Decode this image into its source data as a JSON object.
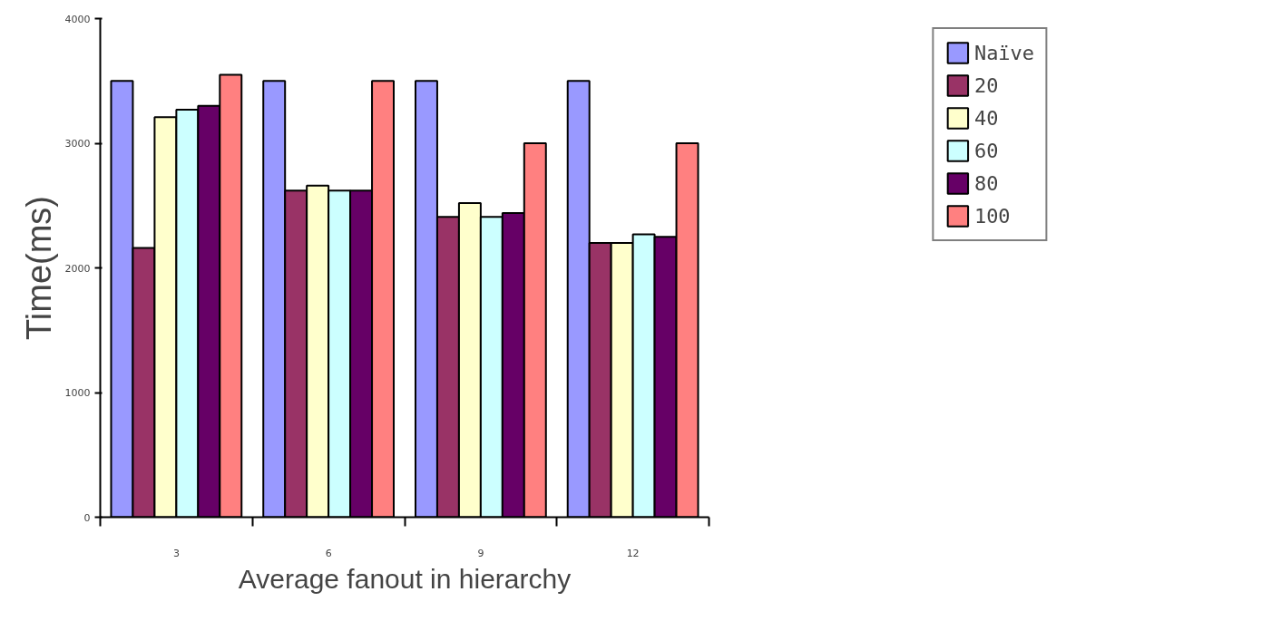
{
  "chart_data": {
    "type": "bar",
    "xlabel": "Average fanout in hierarchy",
    "ylabel": "Time(ms)",
    "categories": [
      "3",
      "6",
      "9",
      "12"
    ],
    "series": [
      {
        "name": "Naïve",
        "color": "#9999ff",
        "values": [
          3500,
          3500,
          3500,
          3500
        ]
      },
      {
        "name": "20",
        "color": "#993366",
        "values": [
          2160,
          2620,
          2410,
          2200
        ]
      },
      {
        "name": "40",
        "color": "#ffffcc",
        "values": [
          3210,
          2660,
          2520,
          2200
        ]
      },
      {
        "name": "60",
        "color": "#ccffff",
        "values": [
          3270,
          2620,
          2410,
          2270
        ]
      },
      {
        "name": "80",
        "color": "#660066",
        "values": [
          3300,
          2620,
          2440,
          2250
        ]
      },
      {
        "name": "100",
        "color": "#ff8080",
        "values": [
          3550,
          3500,
          3000,
          3000
        ]
      }
    ],
    "ylim": [
      0,
      4000
    ],
    "yticks": [
      0,
      1000,
      2000,
      3000,
      4000
    ],
    "grid": false,
    "legend": "top right"
  }
}
